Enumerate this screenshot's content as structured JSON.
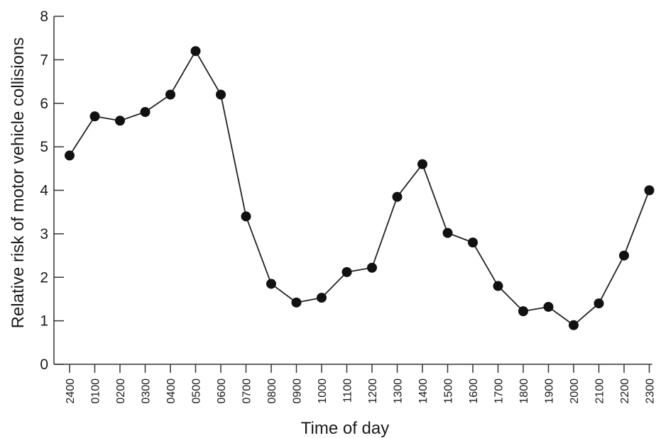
{
  "chart_data": {
    "type": "line",
    "xlabel": "Time of day",
    "ylabel": "Relative risk of motor vehicle collisions",
    "categories": [
      "2400",
      "0100",
      "0200",
      "0300",
      "0400",
      "0500",
      "0600",
      "0700",
      "0800",
      "0900",
      "1000",
      "1100",
      "1200",
      "1300",
      "1400",
      "1500",
      "1600",
      "1700",
      "1800",
      "1900",
      "2000",
      "2100",
      "2200",
      "2300"
    ],
    "values": [
      4.8,
      5.7,
      5.6,
      5.8,
      6.2,
      7.2,
      6.2,
      3.4,
      1.85,
      1.42,
      1.53,
      2.12,
      2.22,
      3.85,
      4.6,
      3.02,
      2.8,
      1.8,
      1.22,
      1.32,
      0.9,
      1.4,
      2.5,
      4.0
    ],
    "ylim": [
      0,
      8
    ],
    "yticks": [
      "0",
      "1",
      "2",
      "3",
      "4",
      "5",
      "6",
      "7",
      "8"
    ],
    "grid": false,
    "legend": "none",
    "colors": {
      "line": "#222222",
      "marker": "#111111",
      "axis": "#333333"
    }
  }
}
